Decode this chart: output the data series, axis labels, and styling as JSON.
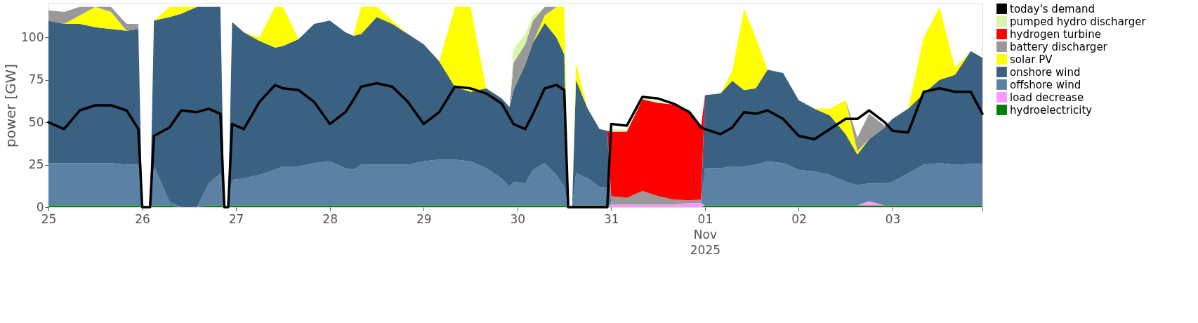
{
  "chart_data": {
    "type": "area",
    "stacked": true,
    "ylabel": "power [GW]",
    "ylim": [
      0,
      120
    ],
    "yticks": [
      0,
      25,
      50,
      75,
      100
    ],
    "xlim": [
      "2025-10-25T00:00",
      "2025-11-03T23:00"
    ],
    "xticks": [
      {
        "value": "2025-10-25T00:00",
        "label": "25"
      },
      {
        "value": "2025-10-26T00:00",
        "label": "26"
      },
      {
        "value": "2025-10-27T00:00",
        "label": "27"
      },
      {
        "value": "2025-10-28T00:00",
        "label": "28"
      },
      {
        "value": "2025-10-29T00:00",
        "label": "29"
      },
      {
        "value": "2025-10-30T00:00",
        "label": "30"
      },
      {
        "value": "2025-10-31T00:00",
        "label": "31"
      },
      {
        "value": "2025-11-01T00:00",
        "label": "01\nNov\n2025"
      },
      {
        "value": "2025-11-02T00:00",
        "label": "02"
      },
      {
        "value": "2025-11-03T00:00",
        "label": "03"
      },
      {
        "value": "2025-11-03T23:00",
        "label": null
      }
    ],
    "grid": false,
    "legend": "right",
    "x": [
      "2025-10-25T00:00",
      "2025-10-25T04:00",
      "2025-10-25T08:00",
      "2025-10-25T12:00",
      "2025-10-25T16:00",
      "2025-10-25T20:00",
      "2025-10-25T23:00",
      "2025-10-26T00:00",
      "2025-10-26T02:00",
      "2025-10-26T03:00",
      "2025-10-26T07:00",
      "2025-10-26T10:00",
      "2025-10-26T14:00",
      "2025-10-26T17:00",
      "2025-10-26T20:00",
      "2025-10-26T21:00",
      "2025-10-26T22:00",
      "2025-10-26T23:00",
      "2025-10-27T02:00",
      "2025-10-27T06:00",
      "2025-10-27T10:00",
      "2025-10-27T12:00",
      "2025-10-27T16:00",
      "2025-10-27T20:00",
      "2025-10-28T00:00",
      "2025-10-28T04:00",
      "2025-10-28T06:00",
      "2025-10-28T08:00",
      "2025-10-28T12:00",
      "2025-10-28T16:00",
      "2025-10-28T20:00",
      "2025-10-29T00:00",
      "2025-10-29T04:00",
      "2025-10-29T08:00",
      "2025-10-29T12:00",
      "2025-10-29T16:00",
      "2025-10-29T20:00",
      "2025-10-29T22:00",
      "2025-10-29T23:00",
      "2025-10-30T02:00",
      "2025-10-30T04:00",
      "2025-10-30T07:00",
      "2025-10-30T10:00",
      "2025-10-30T12:00",
      "2025-10-30T13:00",
      "2025-10-30T14:00",
      "2025-10-30T15:00",
      "2025-10-30T18:00",
      "2025-10-30T21:00",
      "2025-10-30T23:00",
      "2025-10-31T00:00",
      "2025-10-31T04:00",
      "2025-10-31T08:00",
      "2025-10-31T12:00",
      "2025-10-31T16:00",
      "2025-10-31T20:00",
      "2025-10-31T23:00",
      "2025-11-01T00:00",
      "2025-11-01T04:00",
      "2025-11-01T07:00",
      "2025-11-01T10:00",
      "2025-11-01T13:00",
      "2025-11-01T16:00",
      "2025-11-01T20:00",
      "2025-11-02T00:00",
      "2025-11-02T04:00",
      "2025-11-02T08:00",
      "2025-11-02T12:00",
      "2025-11-02T15:00",
      "2025-11-02T18:00",
      "2025-11-02T22:00",
      "2025-11-03T00:00",
      "2025-11-03T04:00",
      "2025-11-03T08:00",
      "2025-11-03T12:00",
      "2025-11-03T16:00",
      "2025-11-03T20:00",
      "2025-11-03T23:00"
    ],
    "series": [
      {
        "name": "today's demand",
        "type": "line",
        "color": "#000000",
        "values": [
          50,
          46,
          57,
          60,
          60,
          57,
          46,
          0,
          0,
          42,
          47,
          57,
          56,
          58,
          55,
          0,
          0,
          49,
          46,
          62,
          72,
          70,
          69,
          62,
          49,
          56,
          63,
          71,
          73,
          71,
          62,
          49,
          56,
          71,
          70,
          67,
          61,
          53,
          49,
          46,
          55,
          70,
          72,
          69,
          0,
          0,
          0,
          0,
          0,
          0,
          49,
          48,
          65,
          64,
          61,
          56,
          47,
          46,
          43,
          47,
          56,
          55,
          57,
          52,
          42,
          40,
          46,
          52,
          52,
          57,
          50,
          45,
          44,
          68,
          70,
          68,
          68,
          55
        ]
      },
      {
        "name": "hydroelectricity",
        "type": "area",
        "color": "#008000",
        "values": [
          1,
          1,
          1,
          1,
          1,
          1,
          1,
          0,
          0,
          1,
          1,
          0,
          0,
          1,
          1,
          0,
          0,
          1,
          1,
          1,
          1,
          1,
          1,
          1,
          1,
          1,
          1,
          1,
          1,
          1,
          1,
          1,
          1,
          1,
          1,
          1,
          1,
          1,
          1,
          1,
          1,
          1,
          1,
          1,
          0,
          0,
          1,
          1,
          1,
          1,
          0,
          0,
          0,
          0,
          0,
          0,
          0,
          1,
          1,
          1,
          1,
          1,
          1,
          1,
          1,
          1,
          1,
          1,
          1,
          1,
          1,
          1,
          1,
          1,
          1,
          1,
          1,
          1
        ]
      },
      {
        "name": "load decrease",
        "type": "area",
        "color": "#ff99ff",
        "values": [
          0,
          0,
          0,
          0,
          0,
          0,
          0,
          0,
          0,
          0,
          0,
          0,
          0,
          0,
          0,
          0,
          0,
          0,
          0,
          0,
          0,
          0,
          0,
          0,
          0,
          0,
          0,
          0,
          0,
          0,
          0,
          0,
          0,
          0,
          0,
          0,
          0,
          0,
          0,
          0,
          0,
          0,
          0,
          0,
          0,
          0,
          0,
          0,
          0,
          0,
          1.5,
          1.5,
          1.5,
          1.5,
          1.5,
          2.5,
          2.5,
          0,
          0,
          0,
          0,
          0,
          0,
          0,
          0,
          0,
          0,
          0,
          0,
          2.5,
          0,
          0,
          0,
          0,
          0,
          0,
          0,
          0
        ]
      },
      {
        "name": "offshore wind",
        "type": "area",
        "color": "#5b82a4",
        "values": [
          25,
          25,
          25,
          25,
          25,
          24,
          24,
          0,
          0,
          23,
          2,
          0,
          0,
          13,
          19,
          0,
          0,
          15,
          16,
          18,
          21,
          23,
          23,
          25,
          26,
          22,
          21,
          24,
          24,
          24,
          24,
          26,
          27,
          27,
          26,
          22,
          16,
          11,
          14,
          13,
          21,
          25,
          18,
          11,
          0,
          0,
          19,
          16,
          11,
          11,
          0,
          0,
          0,
          0,
          0,
          0,
          0,
          22,
          22,
          23,
          23,
          24,
          26,
          25,
          21,
          20,
          18,
          14,
          12,
          10.5,
          13,
          14,
          19,
          24,
          25,
          24,
          24.5,
          24.5
        ]
      },
      {
        "name": "onshore wind",
        "type": "area",
        "color": "#3b6182",
        "values": [
          84,
          82,
          82,
          80,
          79,
          79,
          80,
          0,
          0,
          86,
          109,
          114,
          118,
          104,
          98,
          0,
          0,
          93,
          86,
          79,
          72,
          71,
          75,
          82,
          83,
          80,
          79,
          77,
          87,
          83,
          77,
          69,
          58,
          43,
          41,
          47,
          47,
          47,
          54,
          70,
          75,
          82.5,
          81,
          78,
          0,
          0,
          55,
          41,
          34,
          33,
          0,
          0,
          0,
          0,
          0,
          0,
          0,
          43,
          44,
          50.5,
          45,
          45,
          54,
          53,
          41,
          37,
          35,
          28,
          18,
          26,
          33,
          37,
          38,
          42,
          49,
          53,
          66.5,
          62.5
        ]
      },
      {
        "name": "solar PV",
        "type": "area",
        "color": "#ffff00",
        "values": [
          null,
          0,
          5,
          12,
          10,
          0,
          null,
          null,
          null,
          0,
          6,
          4,
          0,
          null,
          null,
          null,
          null,
          null,
          0,
          2,
          24,
          23,
          0,
          null,
          null,
          null,
          0,
          16,
          6,
          2,
          0,
          null,
          0,
          47,
          50,
          0,
          null,
          null,
          null,
          null,
          0,
          4.5,
          18,
          28,
          0,
          0,
          10,
          0,
          null,
          null,
          null,
          null,
          null,
          null,
          null,
          null,
          null,
          null,
          0,
          6,
          48,
          30,
          0,
          null,
          null,
          0,
          4,
          20,
          2,
          0,
          null,
          null,
          0,
          33,
          43,
          4,
          0,
          null
        ]
      },
      {
        "name": "battery discharger",
        "type": "area",
        "color": "#999999",
        "values": [
          6,
          7,
          5,
          0,
          3,
          4,
          3,
          0,
          null,
          null,
          null,
          null,
          null,
          null,
          null,
          null,
          null,
          null,
          null,
          null,
          null,
          null,
          null,
          null,
          null,
          null,
          null,
          null,
          null,
          null,
          null,
          null,
          null,
          null,
          null,
          null,
          null,
          0,
          16,
          12,
          13,
          5,
          0,
          null,
          null,
          null,
          null,
          null,
          null,
          0,
          5,
          4,
          8,
          5,
          3,
          1.5,
          2,
          0,
          null,
          null,
          null,
          null,
          null,
          null,
          null,
          null,
          null,
          0,
          8,
          15,
          1,
          0,
          null,
          null,
          null,
          null,
          null,
          null
        ]
      },
      {
        "name": "hydrogen turbine",
        "type": "area",
        "color": "#ff0000",
        "values": [
          null,
          null,
          null,
          null,
          null,
          null,
          null,
          null,
          null,
          null,
          null,
          null,
          null,
          null,
          null,
          null,
          null,
          null,
          null,
          null,
          null,
          null,
          null,
          null,
          null,
          null,
          null,
          null,
          null,
          null,
          null,
          null,
          null,
          null,
          null,
          null,
          null,
          null,
          null,
          null,
          null,
          null,
          null,
          null,
          null,
          null,
          null,
          null,
          null,
          0,
          38,
          39,
          54,
          55,
          56,
          53,
          43,
          0,
          null,
          null,
          null,
          null,
          null,
          null,
          null,
          null,
          null,
          null,
          null,
          null,
          null,
          null,
          null,
          null,
          null,
          null,
          null,
          null
        ]
      },
      {
        "name": "pumped hydro discharger",
        "type": "area",
        "color": "#d9f5a8",
        "values": [
          null,
          null,
          null,
          null,
          null,
          null,
          null,
          null,
          null,
          null,
          null,
          null,
          null,
          null,
          null,
          null,
          null,
          null,
          null,
          null,
          null,
          null,
          null,
          null,
          null,
          null,
          null,
          null,
          null,
          null,
          null,
          null,
          null,
          null,
          null,
          null,
          null,
          0,
          8,
          6,
          3,
          0,
          null,
          null,
          null,
          null,
          null,
          null,
          null,
          0,
          1.5,
          1,
          1,
          1,
          0.5,
          0.5,
          0.5,
          0,
          null,
          null,
          null,
          null,
          null,
          null,
          null,
          null,
          null,
          null,
          null,
          null,
          null,
          null,
          null,
          null,
          null,
          null,
          null,
          null
        ]
      }
    ]
  }
}
